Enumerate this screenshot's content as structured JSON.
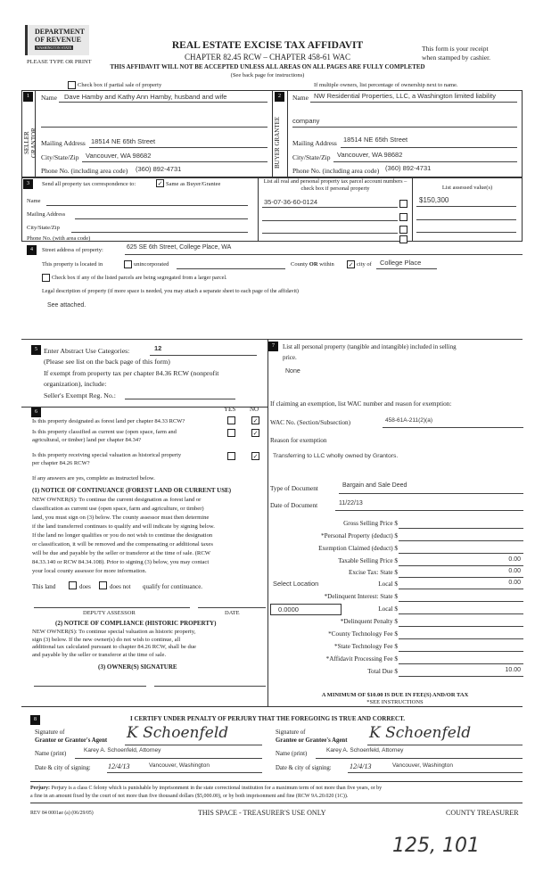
{
  "header": {
    "logo_lines": [
      "DEPARTMENT",
      "OF REVENUE",
      "WASHINGTON STATE"
    ],
    "title": "REAL ESTATE EXCISE TAX AFFIDAVIT",
    "chapter": "CHAPTER 82.45 RCW – CHAPTER 458-61 WAC",
    "warning": "THIS AFFIDAVIT WILL NOT BE ACCEPTED UNLESS ALL AREAS ON ALL PAGES ARE FULLY COMPLETED",
    "see_back": "(See back page for instructions)",
    "type_print": "PLEASE TYPE OR PRINT",
    "receipt_1": "This form is your receipt",
    "receipt_2": "when stamped by cashier.",
    "partial_sale": "Check box if partial sale of property",
    "multiple_owners": "If multiple owners, list percentage of ownership next to name."
  },
  "seller": {
    "num": "1",
    "side": "SELLER GRANTOR",
    "name_label": "Name",
    "name": "Dave Hamby and Kathy Ann Hamby, husband and wife",
    "mail_label": "Mailing Address",
    "mail": "18514 NE 65th Street",
    "city_label": "City/State/Zip",
    "city": "Vancouver, WA  98682",
    "phone_label": "Phone No. (including area code)",
    "phone": "(360) 892-4731"
  },
  "buyer": {
    "num": "2",
    "side": "BUYER GRANTEE",
    "name_label": "Name",
    "name": "NW Residential Properties, LLC, a Washington limited liability",
    "name2": "company",
    "mail_label": "Mailing Address",
    "mail": "18514 NE 65th Street",
    "city_label": "City/State/Zip",
    "city": "Vancouver, WA  98682",
    "phone_label": "Phone No. (including area code)",
    "phone": "(360) 892-4731"
  },
  "sec3": {
    "num": "3",
    "label": "Send all property tax correspondence to:",
    "same": "Same as Buyer/Grantee",
    "same_checked": true,
    "fields": [
      "Name",
      "Mailing Address",
      "City/State/Zip",
      "Phone No. (with area code)"
    ],
    "parcel_header": "List all real and personal property tax parcel account numbers – check box if personal property",
    "value_header": "List assessed value(s)",
    "parcels": [
      "35-07-36-60-0124",
      "",
      "",
      ""
    ],
    "values": [
      "$150,300",
      "",
      "",
      ""
    ]
  },
  "sec4": {
    "num": "4",
    "street_label": "Street address of property:",
    "street": "625 SE 6th Street, College Place, WA",
    "located": "This property is located in",
    "unincorporated": "unincorporated",
    "county": "County",
    "or": "OR",
    "within": "within",
    "within_checked": true,
    "city_of": "city of",
    "city": "College Place",
    "segregated": "Check box if any of the listed parcels are being segregated from a larger parcel.",
    "legal_label": "Legal description of property (if more space is needed, you may attach a separate sheet to each page of the affidavit)",
    "legal": "See attached."
  },
  "sec5": {
    "num": "5",
    "label": "Enter Abstract Use Categories:",
    "value": "12",
    "note": "(Please see list on the back page of this form)",
    "exempt_1": "If exempt from property tax per chapter 84.36 RCW (nonprofit",
    "exempt_2": "organization), include:",
    "seller_reg": "Seller's Exempt Reg. No.:"
  },
  "sec6": {
    "num": "6",
    "yes": "YES",
    "no": "NO",
    "questions": [
      {
        "l1": "Is this property designated as forest land per chapter 84.33 RCW?",
        "l2": "",
        "answer": "NO"
      },
      {
        "l1": "Is this property classified as current use (open space, farm and",
        "l2": "agricultural, or timber) land per chapter 84.34?",
        "answer": "NO"
      },
      {
        "l1": "Is this property receiving special valuation as historical property",
        "l2": "per chapter 84.26 RCW?",
        "answer": "NO"
      }
    ],
    "if_yes": "If any answers are yes, complete as instructed below.",
    "notice1_title": "(1) NOTICE OF CONTINUANCE  (FOREST LAND OR CURRENT USE)",
    "notice1_lines": [
      "NEW OWNER(S): To continue the current designation as forest land or",
      "classification as current use (open space, farm and agriculture, or timber)",
      "land, you must sign on (3) below. The county assessor must then determine",
      "if the land transferred continues to qualify and will indicate by signing below.",
      "If the land no longer qualifies or you do not wish to continue the designation",
      "or classification, it will be removed and the compensating or additional taxes",
      "will be due and payable by the seller or transferor at the time of sale. (RCW",
      "84.33.140 or RCW 84.34.108). Prior to signing (3) below, you may contact",
      "your local county assessor for more information."
    ],
    "this_land": "This land",
    "does": "does",
    "does_not": "does not",
    "qualify": "qualify for continuance.",
    "deputy": "DEPUTY ASSESSOR",
    "date": "DATE",
    "notice2_title": "(2) NOTICE OF COMPLIANCE (HISTORIC PROPERTY)",
    "notice2_lines": [
      "NEW OWNER(S): To continue special valuation as historic property,",
      "sign (3) below. If the new owner(s) do not wish to continue, all",
      "additional tax calculated pursuant to chapter 84.26 RCW, shall be due",
      "and payable by the seller or transferor at the time of sale."
    ],
    "owner_sig": "(3)  OWNER(S) SIGNATURE"
  },
  "sec7": {
    "num": "7",
    "label_1": "List all  personal property (tangible and intangible) included in selling",
    "label_2": "price.",
    "value": "None",
    "exemption": "If claiming an exemption, list WAC number and reason for exemption:",
    "wac_label": "WAC No. (Section/Subsection)",
    "wac": "458-61A-211(2)(a)",
    "reason_label": "Reason for exemption",
    "reason": "Transferring to LLC wholly owned by Grantors.",
    "doc_type_label": "Type of Document",
    "doc_type": "Bargain and Sale Deed",
    "doc_date_label": "Date of Document",
    "doc_date": "11/22/13",
    "select_location": "Select Location",
    "rate": "0.0000",
    "fees": [
      {
        "label": "Gross Selling Price $",
        "value": ""
      },
      {
        "label": "*Personal Property (deduct) $",
        "value": ""
      },
      {
        "label": "Exemption Claimed (deduct) $",
        "value": ""
      },
      {
        "label": "Taxable Selling Price $",
        "value": "0.00"
      },
      {
        "label": "Excise Tax: State $",
        "value": "0.00"
      },
      {
        "label": "Local $",
        "value": "0.00"
      },
      {
        "label": "*Delinquent Interest:   State $",
        "value": ""
      },
      {
        "label": "Local $",
        "value": ""
      },
      {
        "label": "*Delinquent Penalty $",
        "value": ""
      },
      {
        "label": "*County Technology Fee $",
        "value": ""
      },
      {
        "label": "*State Technology Fee $",
        "value": ""
      },
      {
        "label": "*Affidavit Processing Fee $",
        "value": ""
      },
      {
        "label": "Total Due $",
        "value": "10.00"
      }
    ],
    "minimum": "A MINIMUM OF $10.00 IS DUE IN FEE(S) AND/OR TAX",
    "see_instr": "*SEE INSTRUCTIONS"
  },
  "sec8": {
    "num": "8",
    "certify": "I CERTIFY UNDER PENALTY OF PERJURY THAT THE FOREGOING IS TRUE AND CORRECT.",
    "sig_of": "Signature of",
    "grantor_agent": "Grantor or Grantor's Agent",
    "grantee_agent": "Grantee or Grantee's Agent",
    "signature": "K Schoenfeld",
    "name_label": "Name (print)",
    "grantor_name": "Karey A. Schoenfeld, Attorney",
    "grantee_name": "Karey A. Schoenfeld, Attorney",
    "date_label": "Date & city of signing:",
    "grantor_date": "12/4/13",
    "grantee_date": "12/4/13",
    "grantor_city": "Vancouver, Washington",
    "grantee_city": "Vancouver, Washington"
  },
  "footer": {
    "perjury_bold": "Perjury:",
    "perjury_1": "Perjury is a class C felony which is punishable by imprisonment in the state correctional institution for a maximum term of not more than five years, or by",
    "perjury_2": "a fine in an amount fixed by the court of not more than five thousand dollars ($5,000.00), or by both imprisonment and fine (RCW 9A.20.020 (1C)).",
    "rev": "REV 84 0001ae (a) (06/29/05)",
    "treasurer_use": "THIS SPACE - TREASURER'S USE ONLY",
    "county_treasurer": "COUNTY TREASURER",
    "handwritten": "125, 101"
  }
}
